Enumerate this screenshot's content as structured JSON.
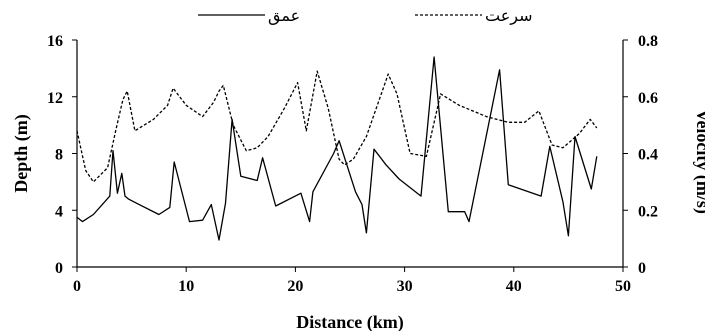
{
  "chart_data": {
    "type": "line",
    "xlabel": "Distance (km)",
    "ylabel_left": "Depth (m)",
    "ylabel_right": "Velocity (m/s)",
    "xlim": [
      0,
      50
    ],
    "ylim_left": [
      0,
      16
    ],
    "ylim_right": [
      0,
      0.8
    ],
    "x_ticks": [
      "0",
      "10",
      "20",
      "30",
      "40",
      "50"
    ],
    "y_ticks_left": [
      "0",
      "4",
      "8",
      "12",
      "16"
    ],
    "y_ticks_right": [
      "0",
      "0.2",
      "0.4",
      "0.6",
      "0.8"
    ],
    "grid": false,
    "legend_position": "top",
    "series": [
      {
        "name": "عمق",
        "axis": "left",
        "style": "solid",
        "color": "#000000",
        "x": [
          0,
          0.5,
          1.5,
          3,
          3.3,
          3.7,
          4.1,
          4.4,
          4.7,
          5.7,
          7.5,
          8.5,
          8.9,
          10.3,
          11.5,
          12.3,
          13,
          13.6,
          14.2,
          15,
          16.5,
          17,
          18.2,
          20.5,
          21.3,
          21.6,
          23.5,
          24,
          25.5,
          26.1,
          26.5,
          27.2,
          28.3,
          29.5,
          31.5,
          32.7,
          34,
          35.5,
          35.9,
          38.7,
          39.5,
          42.5,
          43.3,
          44.5,
          45,
          45.6,
          47.1,
          47.6
        ],
        "y": [
          3.5,
          3.2,
          3.7,
          5.0,
          8.2,
          5.2,
          6.6,
          5.0,
          4.8,
          4.4,
          3.7,
          4.2,
          7.4,
          3.2,
          3.3,
          4.4,
          1.9,
          4.5,
          10.4,
          6.4,
          6.1,
          7.7,
          4.3,
          5.2,
          3.2,
          5.3,
          8.0,
          8.9,
          5.3,
          4.4,
          2.4,
          8.3,
          7.2,
          6.2,
          5.0,
          14.8,
          3.9,
          3.9,
          3.2,
          13.9,
          5.8,
          5.0,
          8.5,
          4.6,
          2.2,
          9.2,
          5.5,
          7.8
        ]
      },
      {
        "name": "سرعت",
        "axis": "right",
        "style": "dashed",
        "color": "#000000",
        "x": [
          0,
          0.8,
          1.5,
          2.8,
          3.6,
          4.2,
          4.6,
          5.3,
          7,
          8.3,
          8.8,
          10,
          11.5,
          12.5,
          13,
          13.4,
          14.3,
          15.5,
          16.5,
          17.5,
          19,
          20.2,
          21,
          22,
          23,
          24,
          24.5,
          25.3,
          26.5,
          27.5,
          28.5,
          29.3,
          30.5,
          32,
          33.3,
          35,
          37.5,
          39.5,
          41,
          42.3,
          43.5,
          44.5,
          46,
          47,
          47.6
        ],
        "y": [
          0.48,
          0.34,
          0.3,
          0.35,
          0.49,
          0.59,
          0.62,
          0.48,
          0.52,
          0.57,
          0.63,
          0.57,
          0.53,
          0.58,
          0.62,
          0.64,
          0.5,
          0.41,
          0.42,
          0.46,
          0.56,
          0.65,
          0.48,
          0.69,
          0.56,
          0.38,
          0.36,
          0.38,
          0.46,
          0.57,
          0.68,
          0.61,
          0.4,
          0.39,
          0.61,
          0.57,
          0.53,
          0.51,
          0.51,
          0.55,
          0.43,
          0.42,
          0.47,
          0.52,
          0.49
        ]
      }
    ]
  }
}
